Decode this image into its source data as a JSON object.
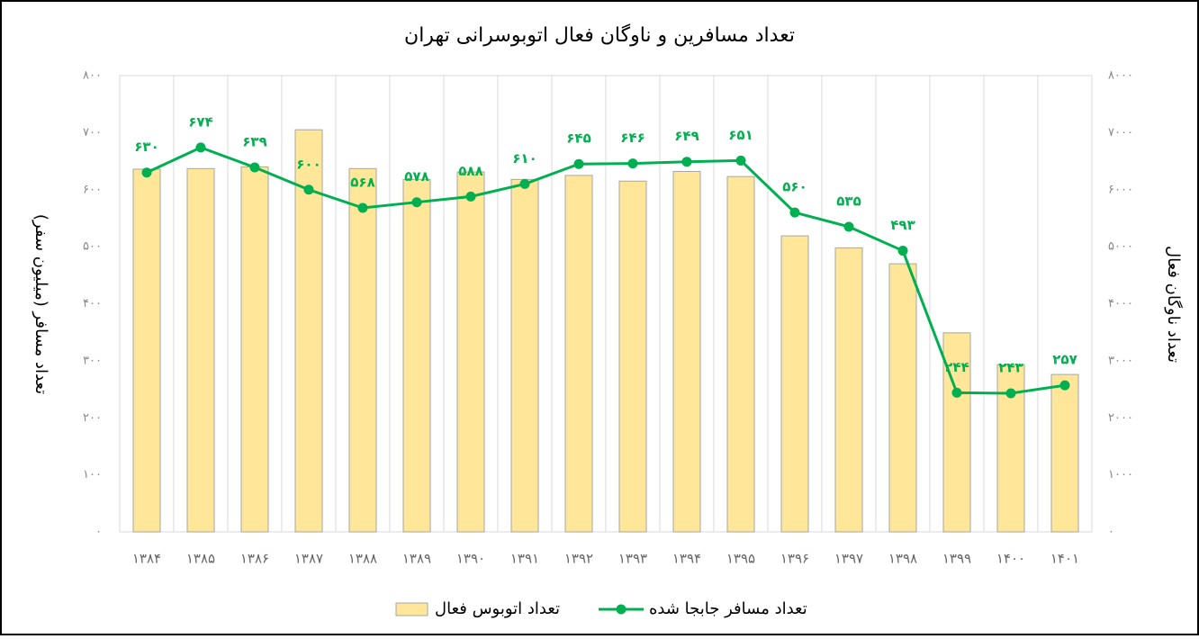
{
  "chart_data": {
    "type": "bar-line",
    "title": "تعداد مسافرین و ناوگان فعال اتوبوسرانی تهران",
    "y_label": "تعداد مسافر (میلیون سفر)",
    "y2_label": "تعداد ناوگان فعال",
    "categories": [
      "۱۳۸۴",
      "۱۳۸۵",
      "۱۳۸۶",
      "۱۳۸۷",
      "۱۳۸۸",
      "۱۳۸۹",
      "۱۳۹۰",
      "۱۳۹۱",
      "۱۳۹۲",
      "۱۳۹۳",
      "۱۳۹۴",
      "۱۳۹۵",
      "۱۳۹۶",
      "۱۳۹۷",
      "۱۳۹۸",
      "۱۳۹۹",
      "۱۴۰۰",
      "۱۴۰۱"
    ],
    "series": [
      {
        "name": "تعداد اتوبوس فعال",
        "type": "bar",
        "axis": "y2",
        "color": "#ffe699",
        "values": [
          6360,
          6370,
          6400,
          7050,
          6370,
          6180,
          6310,
          6180,
          6250,
          6150,
          6320,
          6230,
          5190,
          4980,
          4700,
          3490,
          2930,
          2760
        ]
      },
      {
        "name": "تعداد مسافر جابجا شده",
        "type": "line",
        "axis": "y",
        "color": "#00b050",
        "values": [
          630,
          674,
          639,
          600,
          568,
          578,
          588,
          610,
          645,
          646,
          649,
          651,
          560,
          535,
          493,
          244,
          243,
          257
        ],
        "value_labels": [
          "۶۳۰",
          "۶۷۴",
          "۶۳۹",
          "۶۰۰",
          "۵۶۸",
          "۵۷۸",
          "۵۸۸",
          "۶۱۰",
          "۶۴۵",
          "۶۴۶",
          "۶۴۹",
          "۶۵۱",
          "۵۶۰",
          "۵۳۵",
          "۴۹۳",
          "۲۴۴",
          "۲۴۳",
          "۲۵۷"
        ]
      }
    ],
    "ylim": [
      0,
      800
    ],
    "yticks": [
      {
        "value": 0,
        "label": "۰"
      },
      {
        "value": 100,
        "label": "۱۰۰"
      },
      {
        "value": 200,
        "label": "۲۰۰"
      },
      {
        "value": 300,
        "label": "۳۰۰"
      },
      {
        "value": 400,
        "label": "۴۰۰"
      },
      {
        "value": 500,
        "label": "۵۰۰"
      },
      {
        "value": 600,
        "label": "۶۰۰"
      },
      {
        "value": 700,
        "label": "۷۰۰"
      },
      {
        "value": 800,
        "label": "۸۰۰"
      }
    ],
    "y2lim": [
      0,
      8000
    ],
    "y2ticks": [
      {
        "value": 0,
        "label": "۰"
      },
      {
        "value": 1000,
        "label": "۱۰۰۰"
      },
      {
        "value": 2000,
        "label": "۲۰۰۰"
      },
      {
        "value": 3000,
        "label": "۳۰۰۰"
      },
      {
        "value": 4000,
        "label": "۴۰۰۰"
      },
      {
        "value": 5000,
        "label": "۵۰۰۰"
      },
      {
        "value": 6000,
        "label": "۶۰۰۰"
      },
      {
        "value": 7000,
        "label": "۷۰۰۰"
      },
      {
        "value": 8000,
        "label": "۸۰۰۰"
      }
    ],
    "legend": "bottom"
  }
}
